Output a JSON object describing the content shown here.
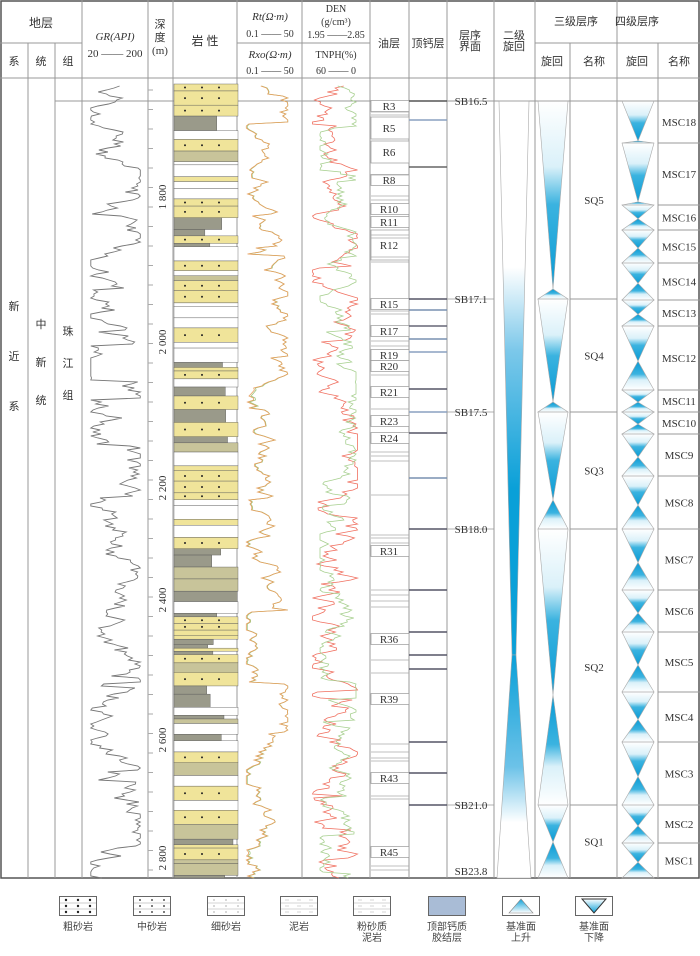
{
  "header": {
    "stratum": "地层",
    "system": "系",
    "series": "统",
    "formation": "组",
    "gr_title": "GR(API)",
    "gr_range": "20 —— 200",
    "depth_title": [
      "深",
      "度",
      "(m)"
    ],
    "lithology": "岩 性",
    "rt_title": "Rt(Ω·m)",
    "rt_range": "0.1 —— 50",
    "rxo_title": "Rxo(Ω·m)",
    "rxo_range": "0.1 —— 50",
    "den_title": "DEN",
    "den_unit": "(g/cm³)",
    "den_range": "1.95 ——2.85",
    "tnph_title": "TNPH(%)",
    "tnph_range": "60 —— 0",
    "oil_layer": "油层",
    "top_calc": "顶钙层",
    "seq_boundary": [
      "层序",
      "界面"
    ],
    "second_cycle": [
      "二级",
      "旋回"
    ],
    "third_order": "三级层序",
    "fourth_order": "四级层序",
    "cycle": "旋回",
    "name": "名称"
  },
  "strata": {
    "system": [
      "新",
      "近",
      "系"
    ],
    "series": [
      "中",
      "新",
      "统"
    ],
    "formation": [
      "珠",
      "江",
      "组"
    ]
  },
  "depth_ticks": [
    {
      "label": "1 800",
      "depth": 1800
    },
    {
      "label": "2 000",
      "depth": 2000
    },
    {
      "label": "2 200",
      "depth": 2200
    },
    {
      "label": "2 400",
      "depth": 2400
    },
    {
      "label": "2 600",
      "depth": 2600
    },
    {
      "label": "2 800",
      "depth": 2800
    }
  ],
  "oil_layers": [
    "R3",
    "R5",
    "R6",
    "R8",
    "R10",
    "R11",
    "R12",
    "R15",
    "R17",
    "R19",
    "R20",
    "R21",
    "R23",
    "R24",
    "R31",
    "R36",
    "R39",
    "R43",
    "R45"
  ],
  "sequence_boundaries": [
    "SB16.5",
    "SB17.1",
    "SB17.5",
    "SB18.0",
    "SB21.0",
    "SB23.8"
  ],
  "third_order_sequences": [
    "SQ5",
    "SQ4",
    "SQ3",
    "SQ2",
    "SQ1"
  ],
  "fourth_order_sequences": [
    "MSC18",
    "MSC17",
    "MSC16",
    "MSC15",
    "MSC14",
    "MSC13",
    "MSC12",
    "MSC11",
    "MSC10",
    "MSC9",
    "MSC8",
    "MSC7",
    "MSC6",
    "MSC5",
    "MSC4",
    "MSC3",
    "MSC2",
    "MSC1"
  ],
  "legend": [
    {
      "label": [
        "粗砂岩"
      ],
      "pattern": "coarse-sandstone"
    },
    {
      "label": [
        "中砂岩"
      ],
      "pattern": "medium-sandstone"
    },
    {
      "label": [
        "细砂岩"
      ],
      "pattern": "fine-sandstone"
    },
    {
      "label": [
        "泥岩"
      ],
      "pattern": "mudstone"
    },
    {
      "label": [
        "粉砂质",
        "泥岩"
      ],
      "pattern": "silty-mudstone"
    },
    {
      "label": [
        "顶部钙质",
        "胶结层"
      ],
      "pattern": "calcareous-layer"
    },
    {
      "label": [
        "基准面",
        "上升"
      ],
      "pattern": "base-level-rise"
    },
    {
      "label": [
        "基准面",
        "下降"
      ],
      "pattern": "base-level-fall"
    }
  ],
  "colors": {
    "line": "#999999",
    "border": "#555555",
    "sand": "#f0e49a",
    "mud": "#9a9a8a",
    "calc": "#a9bcd6",
    "blue": "#0aa0d8",
    "gr": "#777777",
    "rt": "#9cc47a",
    "rxo": "#e8a060",
    "den": "#f07060",
    "tnph": "#a8d090"
  }
}
